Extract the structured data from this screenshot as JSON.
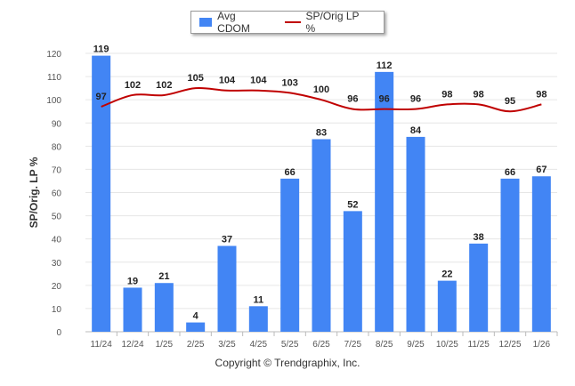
{
  "legend": {
    "bar_label": "Avg CDOM",
    "line_label": "SP/Orig LP %"
  },
  "colors": {
    "bar": "#4285f4",
    "line": "#c00000",
    "grid": "#e6e6e6",
    "axis_text": "#555555"
  },
  "copyright": "Copyright © Trendgraphix, Inc.",
  "chart_data": {
    "type": "bar",
    "title": "",
    "xlabel": "",
    "ylabel": "SP/Orig. LP %",
    "ylim": [
      0,
      120
    ],
    "yticks": [
      0,
      10,
      20,
      30,
      40,
      50,
      60,
      70,
      80,
      90,
      100,
      110,
      120
    ],
    "grid": true,
    "legend_position": "top-center",
    "categories": [
      "11/24",
      "12/24",
      "1/25",
      "2/25",
      "3/25",
      "4/25",
      "5/25",
      "6/25",
      "7/25",
      "8/25",
      "9/25",
      "10/25",
      "11/25",
      "12/25",
      "1/26"
    ],
    "series": [
      {
        "name": "Avg CDOM",
        "kind": "bar",
        "values": [
          119,
          19,
          21,
          4,
          37,
          11,
          66,
          83,
          52,
          112,
          84,
          22,
          38,
          66,
          67
        ]
      },
      {
        "name": "SP/Orig LP %",
        "kind": "line",
        "values": [
          97,
          102,
          102,
          105,
          104,
          104,
          103,
          100,
          96,
          96,
          96,
          98,
          98,
          95,
          98
        ]
      }
    ]
  }
}
